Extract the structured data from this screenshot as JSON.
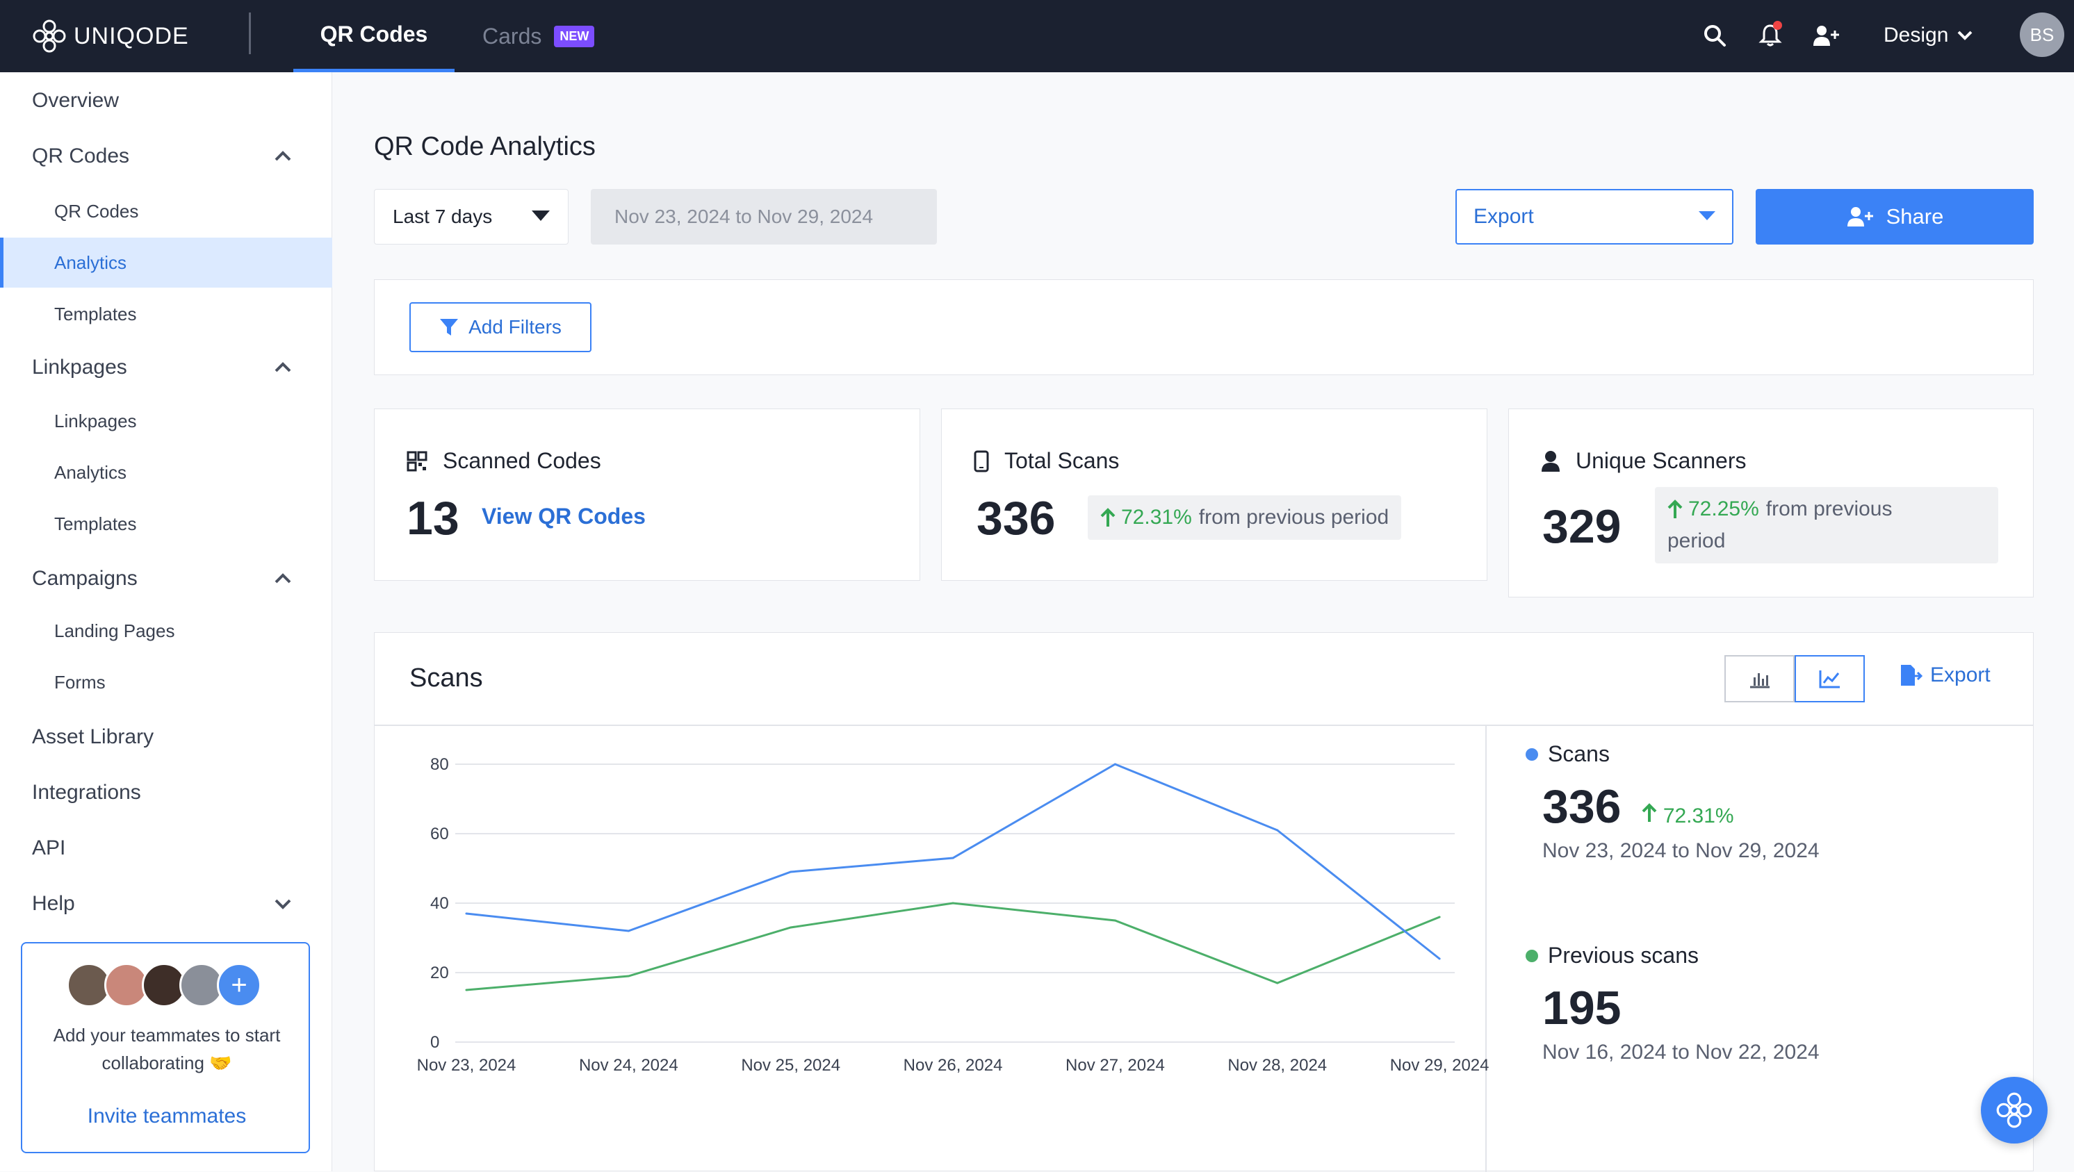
{
  "header": {
    "logo_text": "UNIQODE",
    "tabs": [
      {
        "label": "QR Codes",
        "active": true
      },
      {
        "label": "Cards",
        "badge": "NEW"
      }
    ],
    "workspace": "Design",
    "user_initials": "BS"
  },
  "sidebar": {
    "overview": "Overview",
    "qr_codes": {
      "label": "QR Codes",
      "items": [
        "QR Codes",
        "Analytics",
        "Templates"
      ],
      "active": "Analytics"
    },
    "linkpages": {
      "label": "Linkpages",
      "items": [
        "Linkpages",
        "Analytics",
        "Templates"
      ]
    },
    "campaigns": {
      "label": "Campaigns",
      "items": [
        "Landing Pages",
        "Forms"
      ]
    },
    "asset_library": "Asset Library",
    "integrations": "Integrations",
    "api": "API",
    "help": "Help",
    "invite": {
      "text": "Add your teammates to start collaborating 🤝",
      "link": "Invite teammates"
    }
  },
  "main": {
    "title": "QR Code Analytics",
    "range_select": "Last 7 days",
    "date_range": "Nov 23, 2024 to Nov 29, 2024",
    "export_label": "Export",
    "share_label": "Share",
    "add_filters": "Add Filters"
  },
  "stats": {
    "scanned_codes": {
      "label": "Scanned Codes",
      "value": "13",
      "link": "View QR Codes"
    },
    "total_scans": {
      "label": "Total Scans",
      "value": "336",
      "pct": "72.31%",
      "suffix": "from previous period"
    },
    "unique_scanners": {
      "label": "Unique Scanners",
      "value": "329",
      "pct": "72.25%",
      "suffix_line1": "from previous",
      "suffix_line2": "period"
    }
  },
  "scans_panel": {
    "title": "Scans",
    "export_label": "Export",
    "current": {
      "label": "Scans",
      "value": "336",
      "pct": "72.31%",
      "range": "Nov 23, 2024 to Nov 29, 2024",
      "color": "#4a8cf0"
    },
    "previous": {
      "label": "Previous scans",
      "value": "195",
      "range": "Nov 16, 2024 to Nov 22, 2024",
      "color": "#4caf6a"
    }
  },
  "chart_data": {
    "type": "line",
    "categories": [
      "Nov 23, 2024",
      "Nov 24, 2024",
      "Nov 25, 2024",
      "Nov 26, 2024",
      "Nov 27, 2024",
      "Nov 28, 2024",
      "Nov 29, 2024"
    ],
    "series": [
      {
        "name": "Scans",
        "values": [
          37,
          32,
          49,
          53,
          80,
          61,
          24
        ],
        "color": "#4a8cf0"
      },
      {
        "name": "Previous scans",
        "values": [
          15,
          19,
          33,
          40,
          35,
          17,
          36
        ],
        "color": "#4caf6a"
      }
    ],
    "yticks": [
      0,
      20,
      40,
      60,
      80
    ],
    "ylim": [
      0,
      80
    ],
    "grid": true
  }
}
